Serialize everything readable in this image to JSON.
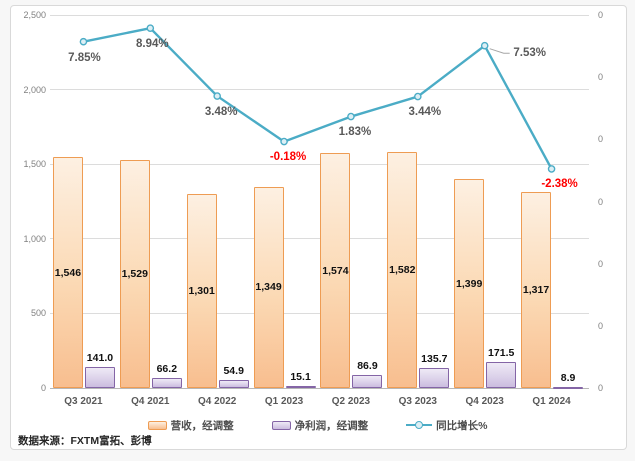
{
  "page": {
    "source_note": "数据来源：FXTM富拓、彭博"
  },
  "chart_data": {
    "type": "bar",
    "subtype": "clustered-bar-with-line-combo",
    "categories": [
      "Q3 2021",
      "Q4 2021",
      "Q4 2022",
      "Q1 2023",
      "Q2 2023",
      "Q3 2023",
      "Q4 2023",
      "Q1 2024"
    ],
    "series": [
      {
        "name": "营收，经调整",
        "type": "bar",
        "axis": "left",
        "color": "#EE9C53",
        "values": [
          1546,
          1529,
          1301,
          1349,
          1574,
          1582,
          1399,
          1317
        ],
        "labels": [
          "1,546",
          "1,529",
          "1,301",
          "1,349",
          "1,574",
          "1,582",
          "1,399",
          "1,317"
        ]
      },
      {
        "name": "净利润，经调整",
        "type": "bar",
        "axis": "left",
        "color": "#8465A6",
        "values": [
          141.0,
          66.2,
          54.9,
          15.1,
          86.9,
          135.7,
          171.5,
          8.9
        ],
        "labels": [
          "141.0",
          "66.2",
          "54.9",
          "15.1",
          "86.9",
          "135.7",
          "171.5",
          "8.9"
        ]
      },
      {
        "name": "同比增长%",
        "type": "line",
        "axis": "right",
        "color": "#4BACC6",
        "values": [
          7.85,
          8.94,
          3.48,
          -0.18,
          1.83,
          3.44,
          7.53,
          -2.38
        ],
        "labels": [
          "7.85%",
          "8.94%",
          "3.48%",
          "-0.18%",
          "1.83%",
          "3.44%",
          "7.53%",
          "-2.38%"
        ]
      }
    ],
    "left_axis": {
      "min": 0,
      "max": 2500,
      "tick_labels": [
        "2,500",
        "2,000",
        "1,500",
        "1,000",
        "500",
        "0"
      ]
    },
    "right_axis": {
      "min": -20,
      "max": 10,
      "tick_labels": [
        "0",
        "0",
        "0",
        "0",
        "0",
        "0",
        "0"
      ]
    },
    "grid": "horizontal",
    "legend_position": "bottom",
    "negative_label_color": "#FF0000",
    "title": "",
    "xlabel": "",
    "ylabel": ""
  },
  "legend": {
    "items": [
      {
        "label": "营收，经调整",
        "swatch": "revenue"
      },
      {
        "label": "净利润，经调整",
        "swatch": "profit"
      },
      {
        "label": "同比增长%",
        "swatch": "line"
      }
    ]
  }
}
